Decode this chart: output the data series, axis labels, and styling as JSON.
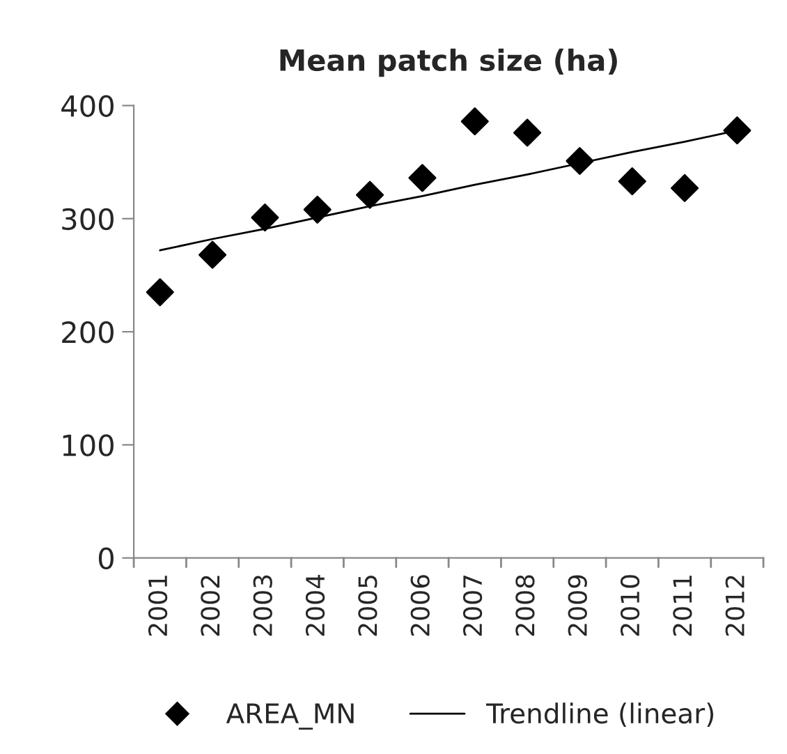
{
  "chart_data": {
    "type": "scatter",
    "title": "Mean patch size (ha)",
    "categories": [
      "2001",
      "2002",
      "2003",
      "2004",
      "2005",
      "2006",
      "2007",
      "2008",
      "2009",
      "2010",
      "2011",
      "2012"
    ],
    "series": [
      {
        "name": "AREA_MN",
        "color": "#000000",
        "marker": "diamond",
        "values": [
          235,
          268,
          301,
          308,
          321,
          336,
          386,
          376,
          351,
          333,
          327,
          378
        ]
      },
      {
        "name": "Trendline (linear)",
        "type": "line",
        "color": "#000000",
        "marker": "none",
        "line_style": "solid",
        "values": [
          272,
          282,
          291,
          301,
          311,
          320,
          330,
          339,
          349,
          359,
          368,
          378
        ]
      }
    ],
    "ylim": [
      0,
      400
    ],
    "yticks": [
      0,
      100,
      200,
      300,
      400
    ],
    "grid": false,
    "legend": "bottom"
  }
}
